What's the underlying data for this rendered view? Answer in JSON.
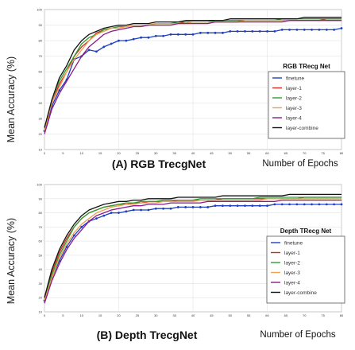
{
  "chart_data": [
    {
      "type": "line",
      "ylabel": "Mean Accuracy (%)",
      "caption": "(A) RGB TrecgNet",
      "xlabel": "Number of Epochs",
      "legend_title": "RGB TRecg Net",
      "legend_position": "right",
      "grid": true,
      "x_ticks": [
        "0",
        "5",
        "10",
        "15",
        "20",
        "25",
        "30",
        "35",
        "40",
        "45",
        "50",
        "55",
        "60",
        "65",
        "70",
        "75",
        "80"
      ],
      "y_ticks": [
        "10",
        "20",
        "30",
        "40",
        "50",
        "60",
        "70",
        "80",
        "90",
        "100"
      ],
      "xlim": [
        0,
        80
      ],
      "ylim": [
        10,
        100
      ],
      "series": [
        {
          "name": "finetune",
          "color": "#1f3fbf",
          "values": [
            22,
            38,
            48,
            55,
            68,
            70,
            74,
            73,
            76,
            78,
            80,
            80,
            81,
            82,
            82,
            83,
            83,
            84,
            84,
            84,
            84,
            85,
            85,
            85,
            85,
            86,
            86,
            86,
            86,
            86,
            86,
            86,
            87,
            87,
            87,
            87,
            87,
            87,
            87,
            87,
            88
          ]
        },
        {
          "name": "layer-1",
          "color": "#d62728",
          "values": [
            24,
            40,
            52,
            60,
            70,
            76,
            80,
            85,
            87,
            88,
            89,
            89,
            90,
            90,
            90,
            91,
            91,
            91,
            91,
            92,
            92,
            92,
            92,
            92,
            92,
            92,
            92,
            93,
            93,
            93,
            93,
            93,
            93,
            93,
            93,
            93,
            93,
            93,
            94,
            94,
            94
          ]
        },
        {
          "name": "layer-2",
          "color": "#2ca02c",
          "values": [
            23,
            42,
            54,
            62,
            70,
            78,
            82,
            84,
            87,
            88,
            89,
            89,
            90,
            90,
            90,
            91,
            91,
            91,
            92,
            92,
            92,
            92,
            92,
            93,
            93,
            93,
            93,
            93,
            93,
            93,
            93,
            93,
            94,
            94,
            94,
            94,
            94,
            94,
            94,
            94,
            94
          ]
        },
        {
          "name": "layer-3",
          "color": "#f0a050",
          "values": [
            22,
            40,
            50,
            60,
            68,
            74,
            80,
            84,
            86,
            88,
            88,
            89,
            90,
            90,
            90,
            91,
            91,
            91,
            91,
            91,
            92,
            92,
            92,
            92,
            92,
            92,
            92,
            93,
            93,
            93,
            93,
            93,
            93,
            93,
            93,
            93,
            93,
            93,
            93,
            93,
            93
          ]
        },
        {
          "name": "layer-4",
          "color": "#8b1a8b",
          "values": [
            20,
            36,
            46,
            54,
            62,
            70,
            76,
            80,
            84,
            86,
            87,
            88,
            89,
            89,
            90,
            90,
            90,
            90,
            91,
            91,
            91,
            91,
            91,
            92,
            92,
            92,
            92,
            92,
            92,
            92,
            92,
            92,
            92,
            93,
            93,
            93,
            93,
            93,
            93,
            93,
            93
          ]
        },
        {
          "name": "layer-combine",
          "color": "#111111",
          "values": [
            24,
            42,
            56,
            64,
            74,
            80,
            84,
            86,
            88,
            89,
            90,
            90,
            91,
            91,
            91,
            92,
            92,
            92,
            92,
            93,
            93,
            93,
            93,
            93,
            93,
            94,
            94,
            94,
            94,
            94,
            94,
            94,
            94,
            94,
            94,
            95,
            95,
            95,
            95,
            95,
            95
          ]
        }
      ]
    },
    {
      "type": "line",
      "ylabel": "Mean Accuracy (%)",
      "caption": "(B) Depth TrecgNet",
      "xlabel": "Number of Epochs",
      "legend_title": "Depth TRecg Net",
      "legend_position": "right",
      "grid": true,
      "x_ticks": [
        "0",
        "5",
        "10",
        "15",
        "20",
        "25",
        "30",
        "35",
        "40",
        "45",
        "50",
        "55",
        "60",
        "65",
        "70",
        "75",
        "80"
      ],
      "y_ticks": [
        "10",
        "20",
        "30",
        "40",
        "50",
        "60",
        "70",
        "80",
        "90",
        "100"
      ],
      "xlim": [
        0,
        80
      ],
      "ylim": [
        10,
        100
      ],
      "series": [
        {
          "name": "finetune",
          "color": "#1f3fbf",
          "values": [
            18,
            34,
            46,
            56,
            64,
            70,
            74,
            76,
            78,
            80,
            80,
            81,
            82,
            82,
            82,
            83,
            83,
            83,
            84,
            84,
            84,
            84,
            84,
            85,
            85,
            85,
            85,
            85,
            85,
            85,
            85,
            86,
            86,
            86,
            86,
            86,
            86,
            86,
            86,
            86,
            86
          ]
        },
        {
          "name": "layer-1",
          "color": "#d62728",
          "values": [
            20,
            38,
            52,
            62,
            70,
            76,
            80,
            82,
            84,
            85,
            86,
            86,
            87,
            87,
            88,
            88,
            88,
            88,
            89,
            89,
            89,
            89,
            89,
            89,
            90,
            90,
            90,
            90,
            90,
            90,
            90,
            90,
            90,
            90,
            90,
            91,
            91,
            91,
            91,
            91,
            91
          ]
        },
        {
          "name": "layer-2",
          "color": "#2ca02c",
          "values": [
            19,
            36,
            50,
            60,
            70,
            76,
            80,
            82,
            84,
            85,
            86,
            87,
            87,
            88,
            88,
            88,
            89,
            89,
            89,
            89,
            89,
            90,
            90,
            90,
            90,
            90,
            90,
            90,
            90,
            91,
            91,
            91,
            91,
            91,
            91,
            91,
            91,
            91,
            91,
            91,
            91
          ]
        },
        {
          "name": "layer-3",
          "color": "#f0a050",
          "values": [
            18,
            34,
            48,
            58,
            66,
            72,
            76,
            80,
            82,
            84,
            85,
            86,
            86,
            87,
            87,
            87,
            88,
            88,
            88,
            88,
            88,
            89,
            89,
            89,
            89,
            89,
            89,
            89,
            89,
            89,
            90,
            90,
            90,
            90,
            90,
            90,
            90,
            90,
            90,
            90,
            90
          ]
        },
        {
          "name": "layer-4",
          "color": "#8b1a8b",
          "values": [
            16,
            32,
            44,
            54,
            62,
            68,
            74,
            78,
            80,
            82,
            83,
            84,
            85,
            85,
            86,
            86,
            86,
            87,
            87,
            87,
            87,
            87,
            88,
            88,
            88,
            88,
            88,
            88,
            88,
            88,
            88,
            88,
            89,
            89,
            89,
            89,
            89,
            89,
            89,
            89,
            89
          ]
        },
        {
          "name": "layer-combine",
          "color": "#111111",
          "values": [
            20,
            40,
            54,
            64,
            72,
            78,
            82,
            84,
            86,
            87,
            88,
            88,
            89,
            89,
            90,
            90,
            90,
            90,
            91,
            91,
            91,
            91,
            91,
            91,
            92,
            92,
            92,
            92,
            92,
            92,
            92,
            92,
            92,
            93,
            93,
            93,
            93,
            93,
            93,
            93,
            93
          ]
        }
      ]
    }
  ]
}
